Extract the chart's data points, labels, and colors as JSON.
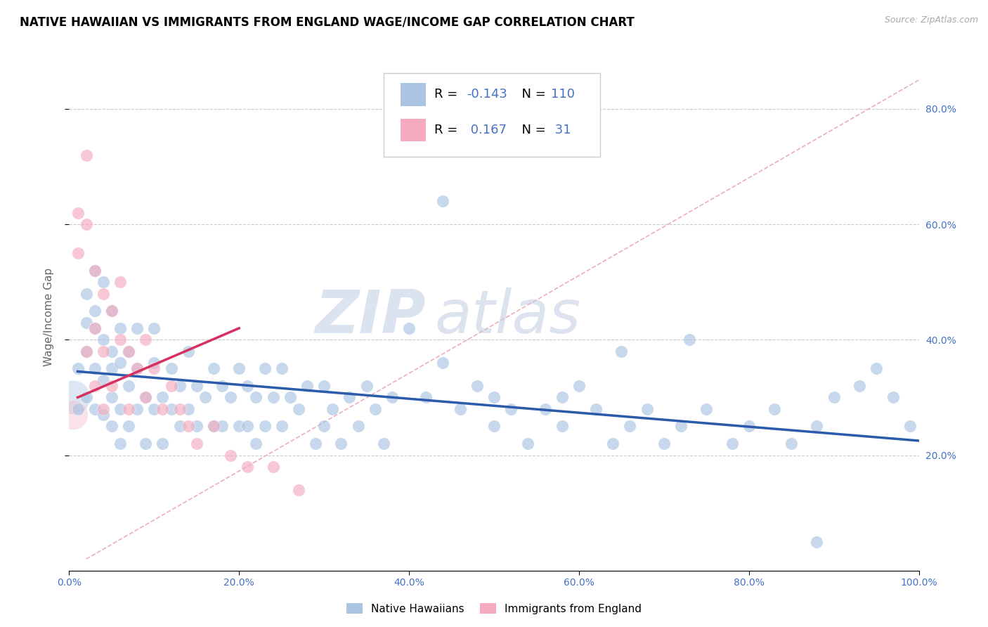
{
  "title": "NATIVE HAWAIIAN VS IMMIGRANTS FROM ENGLAND WAGE/INCOME GAP CORRELATION CHART",
  "source": "Source: ZipAtlas.com",
  "ylabel": "Wage/Income Gap",
  "xlim": [
    0.0,
    1.0
  ],
  "ylim": [
    0.0,
    0.88
  ],
  "xticks": [
    0.0,
    0.2,
    0.4,
    0.6,
    0.8,
    1.0
  ],
  "xticklabels": [
    "0.0%",
    "20.0%",
    "40.0%",
    "60.0%",
    "80.0%",
    "100.0%"
  ],
  "ytick_positions": [
    0.2,
    0.4,
    0.6,
    0.8
  ],
  "yticklabels_right": [
    "20.0%",
    "40.0%",
    "60.0%",
    "80.0%"
  ],
  "blue_color": "#aac4e2",
  "pink_color": "#f5aabf",
  "blue_line_color": "#2b5baa",
  "pink_line_color": "#d63060",
  "diag_line_color": "#e8a0b0",
  "title_fontsize": 12,
  "axis_label_fontsize": 11,
  "tick_color": "#4472c4",
  "legend_R_color": "#4472c4",
  "R_blue": -0.143,
  "N_blue": 110,
  "R_pink": 0.167,
  "N_pink": 31,
  "blue_scatter_x": [
    0.01,
    0.01,
    0.02,
    0.02,
    0.02,
    0.02,
    0.03,
    0.03,
    0.03,
    0.03,
    0.03,
    0.04,
    0.04,
    0.04,
    0.04,
    0.05,
    0.05,
    0.05,
    0.05,
    0.05,
    0.06,
    0.06,
    0.06,
    0.06,
    0.07,
    0.07,
    0.07,
    0.08,
    0.08,
    0.08,
    0.09,
    0.09,
    0.1,
    0.1,
    0.1,
    0.11,
    0.11,
    0.12,
    0.12,
    0.13,
    0.13,
    0.14,
    0.14,
    0.15,
    0.15,
    0.16,
    0.17,
    0.17,
    0.18,
    0.18,
    0.19,
    0.2,
    0.2,
    0.21,
    0.21,
    0.22,
    0.22,
    0.23,
    0.23,
    0.24,
    0.25,
    0.25,
    0.26,
    0.27,
    0.28,
    0.29,
    0.3,
    0.3,
    0.31,
    0.32,
    0.33,
    0.34,
    0.35,
    0.36,
    0.37,
    0.38,
    0.4,
    0.42,
    0.44,
    0.46,
    0.48,
    0.5,
    0.52,
    0.54,
    0.56,
    0.58,
    0.6,
    0.62,
    0.64,
    0.66,
    0.68,
    0.7,
    0.72,
    0.75,
    0.78,
    0.8,
    0.83,
    0.85,
    0.88,
    0.9,
    0.93,
    0.95,
    0.97,
    0.99,
    0.44,
    0.5,
    0.58,
    0.65,
    0.73,
    0.88
  ],
  "blue_scatter_y": [
    0.35,
    0.28,
    0.48,
    0.38,
    0.3,
    0.43,
    0.52,
    0.42,
    0.35,
    0.28,
    0.45,
    0.4,
    0.33,
    0.27,
    0.5,
    0.45,
    0.38,
    0.3,
    0.25,
    0.35,
    0.42,
    0.36,
    0.28,
    0.22,
    0.38,
    0.32,
    0.25,
    0.35,
    0.28,
    0.42,
    0.3,
    0.22,
    0.36,
    0.28,
    0.42,
    0.3,
    0.22,
    0.35,
    0.28,
    0.32,
    0.25,
    0.38,
    0.28,
    0.32,
    0.25,
    0.3,
    0.35,
    0.25,
    0.32,
    0.25,
    0.3,
    0.35,
    0.25,
    0.32,
    0.25,
    0.3,
    0.22,
    0.35,
    0.25,
    0.3,
    0.35,
    0.25,
    0.3,
    0.28,
    0.32,
    0.22,
    0.32,
    0.25,
    0.28,
    0.22,
    0.3,
    0.25,
    0.32,
    0.28,
    0.22,
    0.3,
    0.42,
    0.3,
    0.36,
    0.28,
    0.32,
    0.25,
    0.28,
    0.22,
    0.28,
    0.25,
    0.32,
    0.28,
    0.22,
    0.25,
    0.28,
    0.22,
    0.25,
    0.28,
    0.22,
    0.25,
    0.28,
    0.22,
    0.25,
    0.3,
    0.32,
    0.35,
    0.3,
    0.25,
    0.64,
    0.3,
    0.3,
    0.38,
    0.4,
    0.05
  ],
  "pink_scatter_x": [
    0.01,
    0.01,
    0.02,
    0.02,
    0.02,
    0.03,
    0.03,
    0.03,
    0.04,
    0.04,
    0.04,
    0.05,
    0.05,
    0.06,
    0.06,
    0.07,
    0.07,
    0.08,
    0.09,
    0.09,
    0.1,
    0.11,
    0.12,
    0.13,
    0.14,
    0.15,
    0.17,
    0.19,
    0.21,
    0.24,
    0.27
  ],
  "pink_scatter_y": [
    0.62,
    0.55,
    0.72,
    0.6,
    0.38,
    0.52,
    0.42,
    0.32,
    0.48,
    0.38,
    0.28,
    0.45,
    0.32,
    0.5,
    0.4,
    0.38,
    0.28,
    0.35,
    0.3,
    0.4,
    0.35,
    0.28,
    0.32,
    0.28,
    0.25,
    0.22,
    0.25,
    0.2,
    0.18,
    0.18,
    0.14
  ],
  "watermark_zip": "ZIP",
  "watermark_atlas": "atlas"
}
